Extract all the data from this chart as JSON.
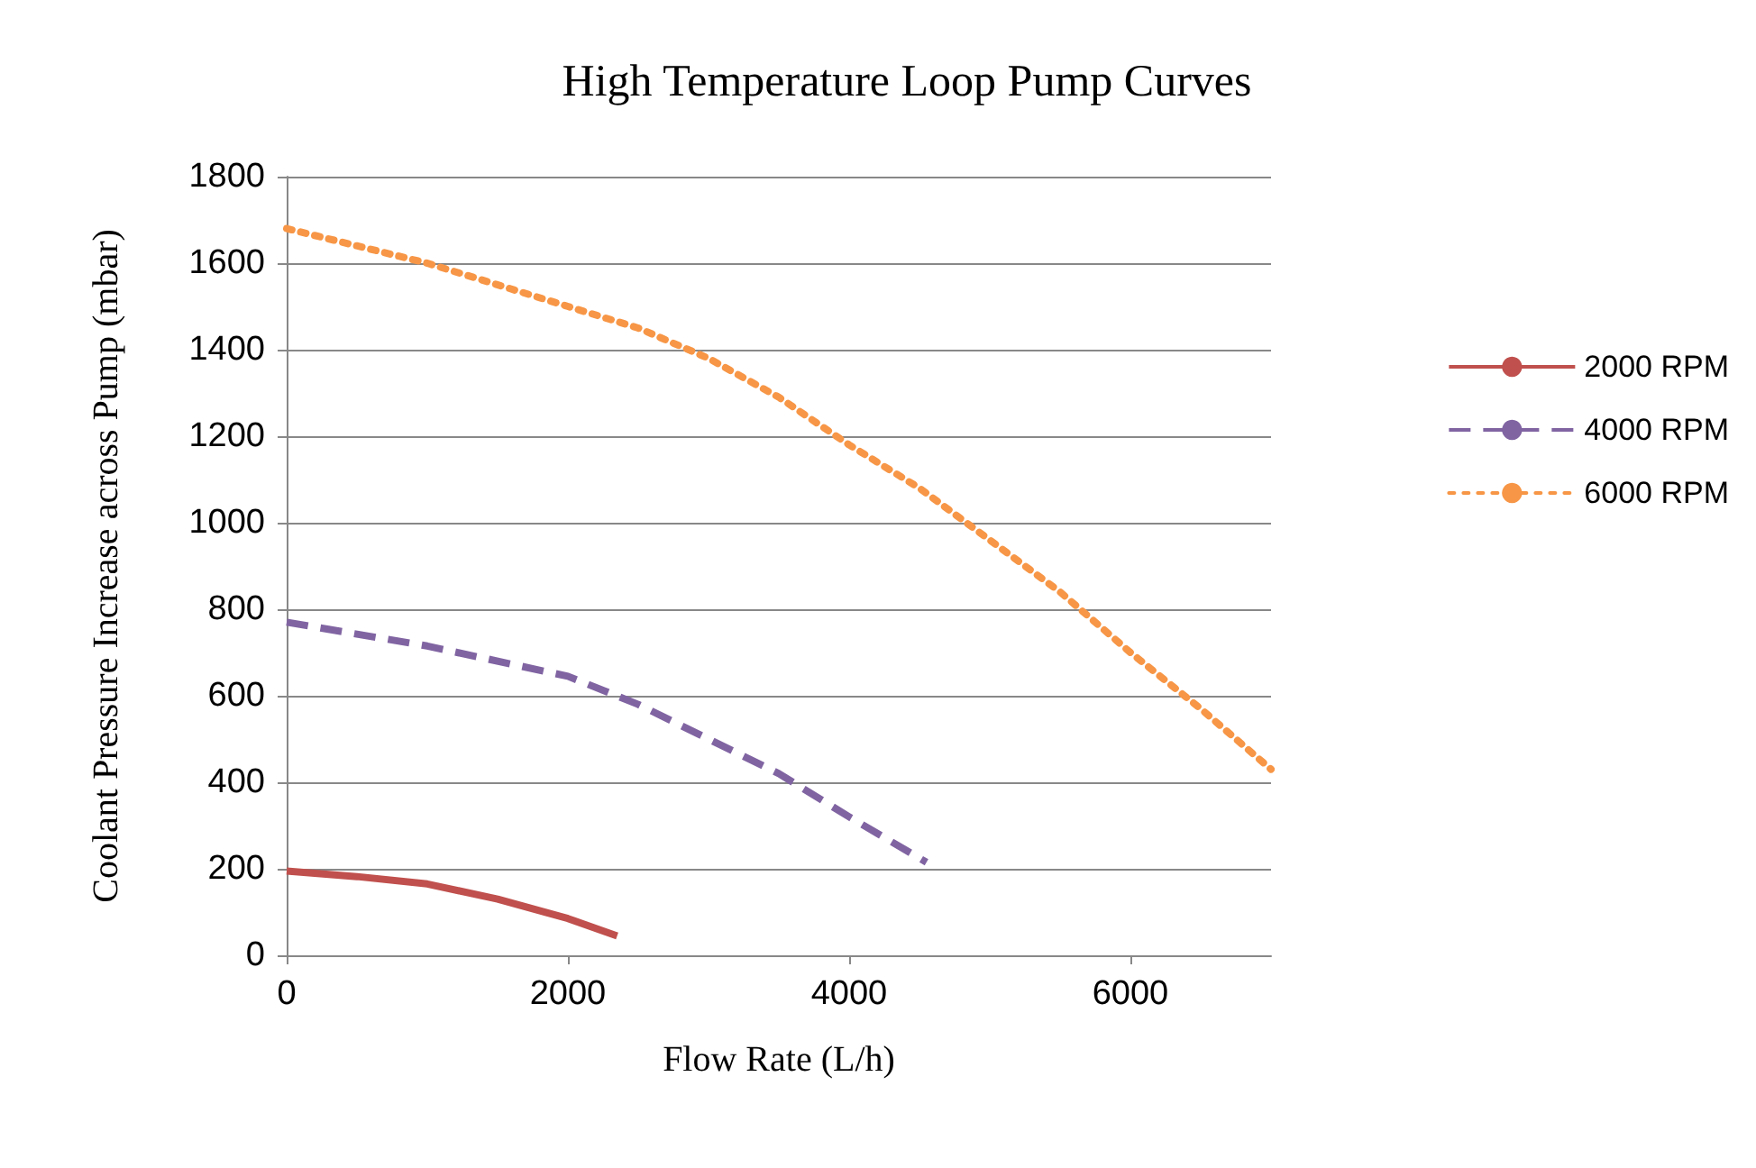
{
  "chart_data": {
    "type": "line",
    "title": "High Temperature Loop Pump Curves",
    "xlabel": "Flow Rate (L/h)",
    "ylabel": "Coolant Pressure Increase across Pump (mbar)",
    "series": [
      {
        "name": "2000 RPM",
        "color": "#c0504d",
        "line_style": "solid",
        "x": [
          0,
          500,
          1000,
          1500,
          2000,
          2350
        ],
        "values": [
          195,
          182,
          165,
          130,
          85,
          45
        ]
      },
      {
        "name": "4000 RPM",
        "color": "#8064a2",
        "line_style": "dashed",
        "x": [
          0,
          1000,
          2000,
          2500,
          3000,
          3500,
          4000,
          4550
        ],
        "values": [
          770,
          715,
          645,
          580,
          500,
          420,
          320,
          215
        ]
      },
      {
        "name": "6000 RPM",
        "color": "#f79646",
        "line_style": "dotted",
        "x": [
          0,
          1000,
          2000,
          2500,
          3000,
          3500,
          4000,
          4500,
          5000,
          5500,
          6000,
          6500,
          7000
        ],
        "values": [
          1680,
          1600,
          1500,
          1450,
          1380,
          1290,
          1180,
          1080,
          960,
          840,
          700,
          570,
          430
        ]
      }
    ],
    "xlim": [
      0,
      7000
    ],
    "xticks": [
      0,
      2000,
      4000,
      6000
    ],
    "ylim": [
      0,
      1800
    ],
    "yticks": [
      0,
      200,
      400,
      600,
      800,
      1000,
      1200,
      1400,
      1600,
      1800
    ],
    "grid": "y",
    "legend": "right",
    "marker": "none"
  }
}
